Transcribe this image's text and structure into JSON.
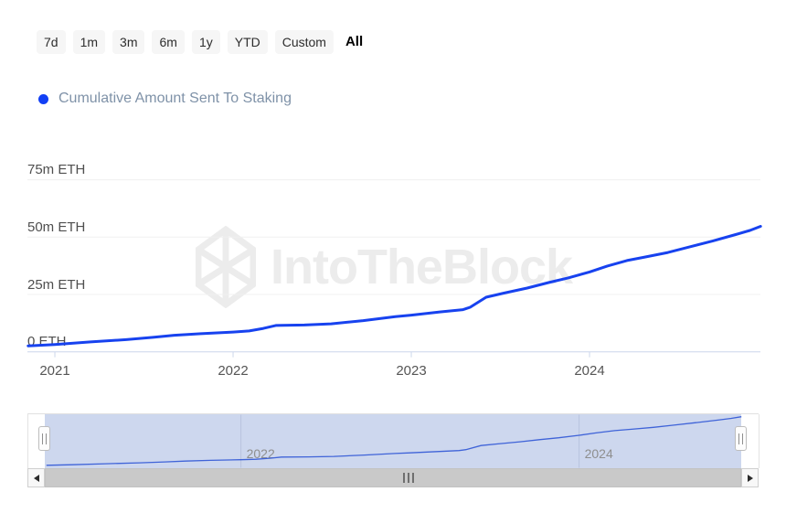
{
  "controls": {
    "ranges": [
      {
        "label": "7d"
      },
      {
        "label": "1m"
      },
      {
        "label": "3m"
      },
      {
        "label": "6m"
      },
      {
        "label": "1y"
      },
      {
        "label": "YTD"
      },
      {
        "label": "Custom"
      },
      {
        "label": "All"
      }
    ],
    "selected": "All"
  },
  "legend": {
    "label": "Cumulative Amount Sent To Staking",
    "marker_color": "#1240f5"
  },
  "watermark": {
    "brand": "IntoTheBlock"
  },
  "chart_data": {
    "type": "line",
    "title": "Cumulative Amount Sent To Staking",
    "unit": "million ETH",
    "grid": "horizontal",
    "legend_position": "top-left",
    "series": [
      {
        "name": "Cumulative Amount Sent To Staking",
        "color": "#1742ef",
        "points": [
          [
            2020.85,
            2.6
          ],
          [
            2021.0,
            3.2
          ],
          [
            2021.2,
            4.3
          ],
          [
            2021.4,
            5.3
          ],
          [
            2021.55,
            6.3
          ],
          [
            2021.67,
            7.2
          ],
          [
            2021.82,
            7.9
          ],
          [
            2022.0,
            8.6
          ],
          [
            2022.09,
            9.1
          ],
          [
            2022.17,
            10.2
          ],
          [
            2022.24,
            11.5
          ],
          [
            2022.4,
            11.7
          ],
          [
            2022.55,
            12.2
          ],
          [
            2022.73,
            13.6
          ],
          [
            2022.91,
            15.3
          ],
          [
            2023.0,
            16.0
          ],
          [
            2023.16,
            17.4
          ],
          [
            2023.29,
            18.4
          ],
          [
            2023.33,
            19.4
          ],
          [
            2023.42,
            23.8
          ],
          [
            2023.52,
            25.6
          ],
          [
            2023.65,
            27.8
          ],
          [
            2023.77,
            30.2
          ],
          [
            2023.88,
            32.2
          ],
          [
            2024.0,
            34.8
          ],
          [
            2024.1,
            37.4
          ],
          [
            2024.21,
            39.8
          ],
          [
            2024.31,
            41.3
          ],
          [
            2024.44,
            43.3
          ],
          [
            2024.56,
            45.7
          ],
          [
            2024.69,
            48.3
          ],
          [
            2024.82,
            51.1
          ],
          [
            2024.9,
            52.9
          ],
          [
            2024.96,
            54.7
          ]
        ]
      }
    ],
    "x_axis": {
      "range": [
        2020.85,
        2024.96
      ],
      "ticks": [
        {
          "year": 2021,
          "label": "2021"
        },
        {
          "year": 2022,
          "label": "2022"
        },
        {
          "year": 2023,
          "label": "2023"
        },
        {
          "year": 2024,
          "label": "2024"
        }
      ]
    },
    "y_axis": {
      "range": [
        0,
        90
      ],
      "ticks": [
        {
          "value": 0,
          "label": "0 ETH"
        },
        {
          "value": 25,
          "label": "25m ETH"
        },
        {
          "value": 50,
          "label": "50m ETH"
        },
        {
          "value": 75,
          "label": "75m ETH"
        }
      ]
    },
    "navigator": {
      "range": [
        2020.84,
        2024.96
      ],
      "series_color": "#3f63d8",
      "mask_color": "#cdd7ee",
      "labels": [
        {
          "year": 2022,
          "label": "2022"
        },
        {
          "year": 2024,
          "label": "2024"
        }
      ]
    }
  }
}
